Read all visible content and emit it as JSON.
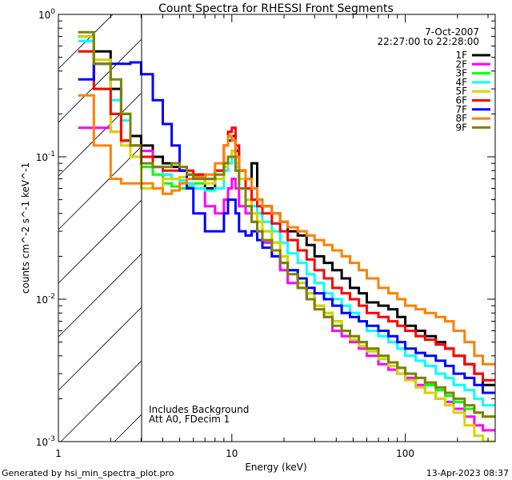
{
  "chart_data": {
    "type": "line",
    "title": "Count Spectra for RHESSI Front Segments",
    "xlabel": "Energy (keV)",
    "ylabel": "counts cm^-2 s^-1 keV^-1",
    "ylabel_parts": {
      "a": "counts cm",
      "b": "-2",
      "c": " s",
      "d": "-1",
      "e": " keV",
      "f": "-1"
    },
    "xscale": "log",
    "yscale": "log",
    "xlim": [
      1,
      330
    ],
    "ylim": [
      0.001,
      1
    ],
    "x_tick_labels": [
      "1",
      "10",
      "100"
    ],
    "y_tick_labels": [
      {
        "base": "10",
        "exp": "0",
        "value": 1
      },
      {
        "base": "10",
        "exp": "-1",
        "value": 0.1
      },
      {
        "base": "10",
        "exp": "-2",
        "value": 0.01
      },
      {
        "base": "10",
        "exp": "-3",
        "value": 0.001
      }
    ],
    "hatched_region_keV": [
      1,
      3
    ],
    "date": "7-Oct-2007",
    "time_range": "22:27:00 to 22:28:00",
    "annotations": [
      "Includes Background",
      "Att A0, FDecim 1"
    ],
    "legend_placement": "top-right",
    "energy_edges": [
      1.3,
      1.6,
      2,
      2.3,
      2.6,
      3,
      3.5,
      4,
      4.5,
      5,
      5.5,
      6,
      7,
      8,
      9,
      9.5,
      10,
      10.5,
      11,
      12,
      13,
      14,
      15,
      17,
      19,
      21,
      24,
      27,
      30,
      34,
      38,
      43,
      48,
      54,
      60,
      70,
      80,
      90,
      100,
      115,
      130,
      150,
      170,
      190,
      220,
      250,
      280,
      330
    ],
    "series": [
      {
        "name": "1F",
        "color": "#000000",
        "values": [
          0.7,
          0.55,
          0.3,
          0.2,
          0.14,
          0.12,
          0.1,
          0.09,
          0.085,
          0.08,
          0.075,
          0.075,
          0.06,
          0.08,
          0.12,
          0.13,
          0.14,
          0.11,
          0.08,
          0.06,
          0.09,
          0.05,
          0.045,
          0.04,
          0.035,
          0.03,
          0.028,
          0.024,
          0.02,
          0.018,
          0.016,
          0.014,
          0.012,
          0.011,
          0.0095,
          0.009,
          0.0085,
          0.0075,
          0.0065,
          0.006,
          0.0055,
          0.005,
          0.0045,
          0.004,
          0.0035,
          0.003,
          0.0025
        ]
      },
      {
        "name": "2F",
        "color": "#ff00ff",
        "values": [
          0.16,
          0.16,
          0.15,
          0.13,
          0.12,
          0.11,
          0.085,
          0.075,
          0.07,
          0.068,
          0.065,
          0.06,
          0.045,
          0.04,
          0.05,
          0.06,
          0.07,
          0.06,
          0.045,
          0.04,
          0.035,
          0.03,
          0.025,
          0.02,
          0.016,
          0.013,
          0.012,
          0.01,
          0.009,
          0.0075,
          0.006,
          0.0055,
          0.005,
          0.0045,
          0.004,
          0.0035,
          0.0032,
          0.003,
          0.0028,
          0.0025,
          0.0022,
          0.002,
          0.0019,
          0.0017,
          0.0015,
          0.0013,
          0.0012
        ]
      },
      {
        "name": "3F",
        "color": "#00ff00",
        "values": [
          0.55,
          0.3,
          0.2,
          0.13,
          0.1,
          0.085,
          0.075,
          0.065,
          0.062,
          0.06,
          0.062,
          0.065,
          0.07,
          0.08,
          0.09,
          0.1,
          0.11,
          0.09,
          0.07,
          0.05,
          0.04,
          0.035,
          0.03,
          0.025,
          0.02,
          0.016,
          0.013,
          0.011,
          0.009,
          0.008,
          0.007,
          0.006,
          0.0055,
          0.005,
          0.0045,
          0.004,
          0.0036,
          0.0033,
          0.003,
          0.0028,
          0.0025,
          0.0023,
          0.0021,
          0.0019,
          0.0017,
          0.0016,
          0.0015
        ]
      },
      {
        "name": "4F",
        "color": "#00ffff",
        "values": [
          0.65,
          0.45,
          0.25,
          0.18,
          0.12,
          0.1,
          0.085,
          0.075,
          0.07,
          0.068,
          0.065,
          0.06,
          0.058,
          0.06,
          0.08,
          0.09,
          0.1,
          0.085,
          0.06,
          0.05,
          0.045,
          0.04,
          0.035,
          0.03,
          0.025,
          0.021,
          0.018,
          0.015,
          0.013,
          0.011,
          0.01,
          0.009,
          0.008,
          0.007,
          0.006,
          0.0055,
          0.005,
          0.0045,
          0.004,
          0.0037,
          0.0034,
          0.003,
          0.0028,
          0.0025,
          0.0023,
          0.002,
          0.0018
        ]
      },
      {
        "name": "5F",
        "color": "#d4d400",
        "values": [
          0.7,
          0.48,
          0.15,
          0.12,
          0.1,
          0.06,
          0.06,
          0.07,
          0.07,
          0.072,
          0.075,
          0.07,
          0.065,
          0.07,
          0.085,
          0.1,
          0.11,
          0.09,
          0.07,
          0.05,
          0.04,
          0.035,
          0.03,
          0.025,
          0.02,
          0.016,
          0.013,
          0.011,
          0.009,
          0.008,
          0.007,
          0.006,
          0.0052,
          0.0047,
          0.0043,
          0.0038,
          0.0034,
          0.003,
          0.0027,
          0.0024,
          0.0022,
          0.002,
          0.0018,
          0.0016,
          0.0013,
          0.0011,
          0.001
        ]
      },
      {
        "name": "6F",
        "color": "#ff0000",
        "values": [
          0.55,
          0.3,
          0.2,
          0.13,
          0.12,
          0.1,
          0.085,
          0.08,
          0.08,
          0.08,
          0.08,
          0.075,
          0.07,
          0.08,
          0.12,
          0.15,
          0.16,
          0.12,
          0.08,
          0.06,
          0.05,
          0.045,
          0.04,
          0.034,
          0.03,
          0.026,
          0.022,
          0.019,
          0.016,
          0.014,
          0.012,
          0.011,
          0.01,
          0.009,
          0.008,
          0.0075,
          0.007,
          0.0065,
          0.006,
          0.0055,
          0.0052,
          0.0048,
          0.0045,
          0.004,
          0.0035,
          0.003,
          0.0027
        ]
      },
      {
        "name": "7F",
        "color": "#0000ff",
        "values": [
          0.35,
          0.45,
          0.45,
          0.45,
          0.46,
          0.38,
          0.25,
          0.17,
          0.12,
          0.08,
          0.06,
          0.04,
          0.03,
          0.03,
          0.04,
          0.05,
          0.05,
          0.04,
          0.03,
          0.028,
          0.03,
          0.026,
          0.023,
          0.02,
          0.018,
          0.016,
          0.014,
          0.012,
          0.011,
          0.01,
          0.009,
          0.008,
          0.0075,
          0.007,
          0.0065,
          0.006,
          0.0055,
          0.005,
          0.0045,
          0.0042,
          0.004,
          0.0037,
          0.0034,
          0.003,
          0.0028,
          0.0025,
          0.0022
        ]
      },
      {
        "name": "8F",
        "color": "#ff8000",
        "values": [
          0.27,
          0.12,
          0.07,
          0.065,
          0.065,
          0.065,
          0.06,
          0.055,
          0.058,
          0.065,
          0.07,
          0.072,
          0.075,
          0.09,
          0.12,
          0.14,
          0.13,
          0.1,
          0.08,
          0.07,
          0.06,
          0.05,
          0.045,
          0.04,
          0.035,
          0.032,
          0.03,
          0.028,
          0.026,
          0.024,
          0.022,
          0.02,
          0.018,
          0.016,
          0.014,
          0.012,
          0.011,
          0.01,
          0.009,
          0.0085,
          0.008,
          0.0075,
          0.007,
          0.006,
          0.005,
          0.004,
          0.0035
        ]
      },
      {
        "name": "9F",
        "color": "#808000",
        "values": [
          0.75,
          0.45,
          0.35,
          0.2,
          0.12,
          0.09,
          0.085,
          0.085,
          0.09,
          0.085,
          0.075,
          0.07,
          0.07,
          0.075,
          0.09,
          0.1,
          0.1,
          0.08,
          0.06,
          0.045,
          0.035,
          0.03,
          0.026,
          0.022,
          0.018,
          0.015,
          0.012,
          0.01,
          0.0085,
          0.0075,
          0.0065,
          0.006,
          0.0055,
          0.005,
          0.0045,
          0.004,
          0.0036,
          0.0033,
          0.003,
          0.0028,
          0.0026,
          0.0024,
          0.0022,
          0.002,
          0.0018,
          0.0016,
          0.0015
        ]
      }
    ]
  },
  "footer": {
    "generated_by": "Generated by hsi_min_spectra_plot.pro",
    "timestamp": "13-Apr-2023 08:37"
  }
}
